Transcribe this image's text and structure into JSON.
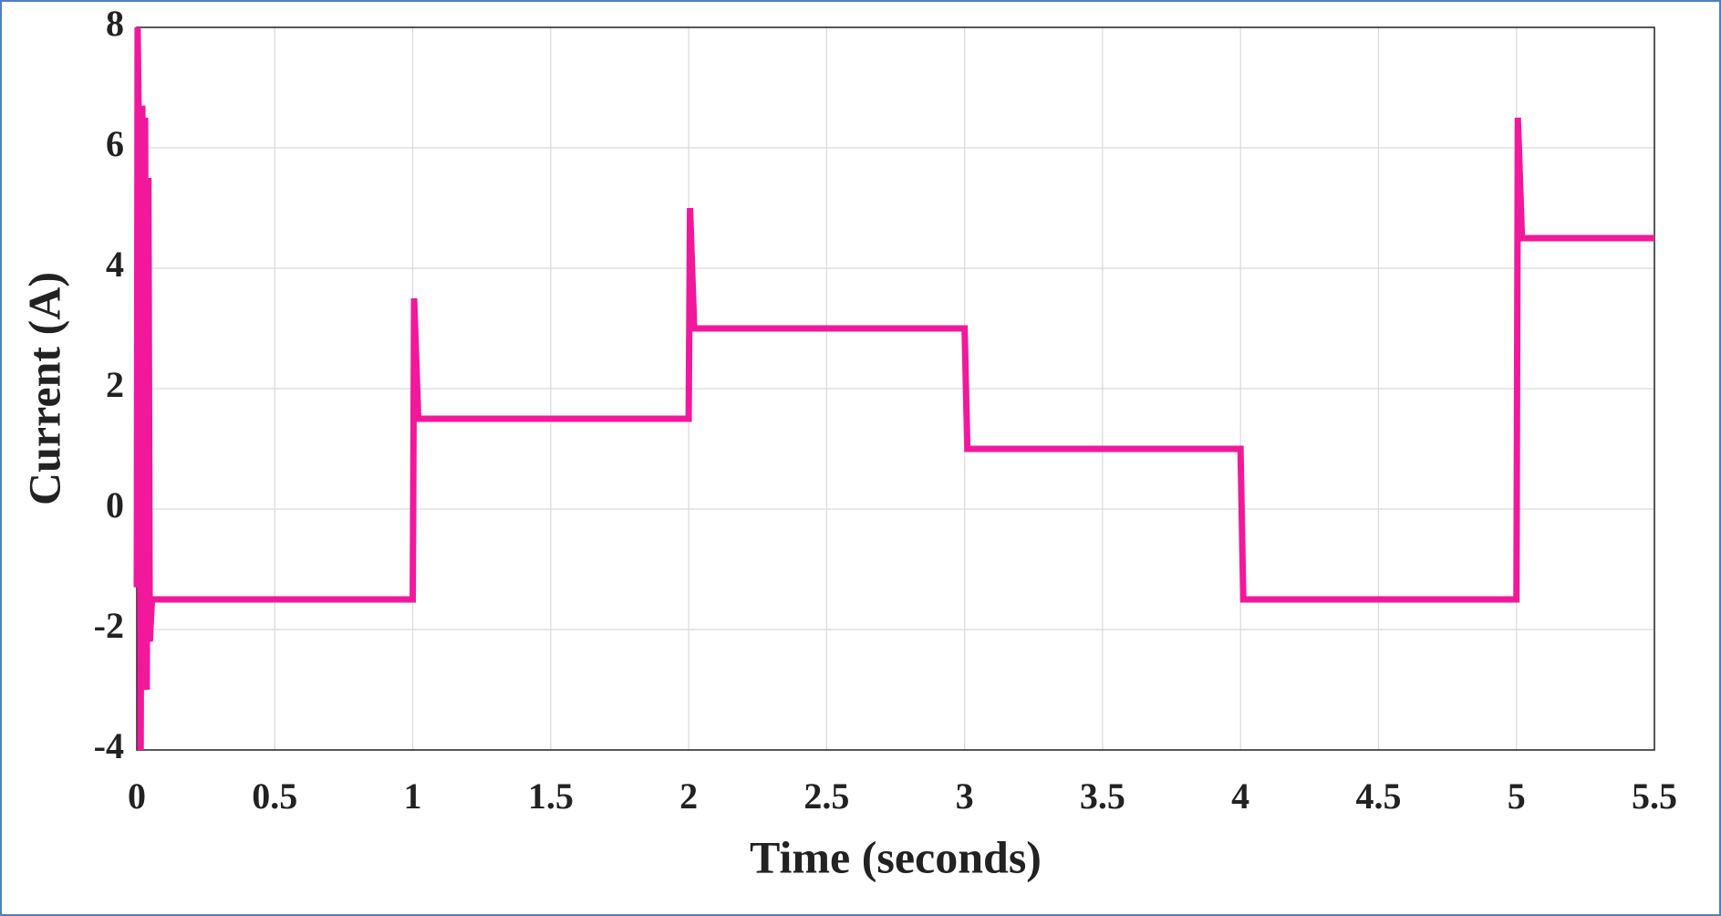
{
  "chart_data": {
    "type": "line",
    "x_label": "Time (seconds)",
    "y_label": "Current (A)",
    "x": [
      0,
      0.003,
      0.008,
      0.014,
      0.02,
      0.025,
      0.03,
      0.036,
      0.042,
      0.047,
      0.055,
      1,
      1.005,
      1.02,
      2,
      2.005,
      2.02,
      3,
      3.01,
      4,
      4.01,
      5,
      5.005,
      5.02,
      5.5
    ],
    "values": [
      -1.3,
      8,
      6,
      -4,
      6.7,
      3,
      6.5,
      -3,
      5.5,
      -2.2,
      -1.5,
      -1.5,
      3.5,
      1.5,
      1.5,
      5,
      3,
      3,
      1,
      1,
      -1.5,
      -1.5,
      6.5,
      4.5,
      4.5
    ],
    "color": "#f2189c",
    "xlim": [
      0,
      5.5
    ],
    "xticks": [
      0,
      0.5,
      1,
      1.5,
      2,
      2.5,
      3,
      3.5,
      4,
      4.5,
      5,
      5.5
    ],
    "ylim": [
      -4,
      8
    ],
    "yticks": [
      -4,
      -2,
      0,
      2,
      4,
      6,
      8
    ],
    "grid": true
  }
}
